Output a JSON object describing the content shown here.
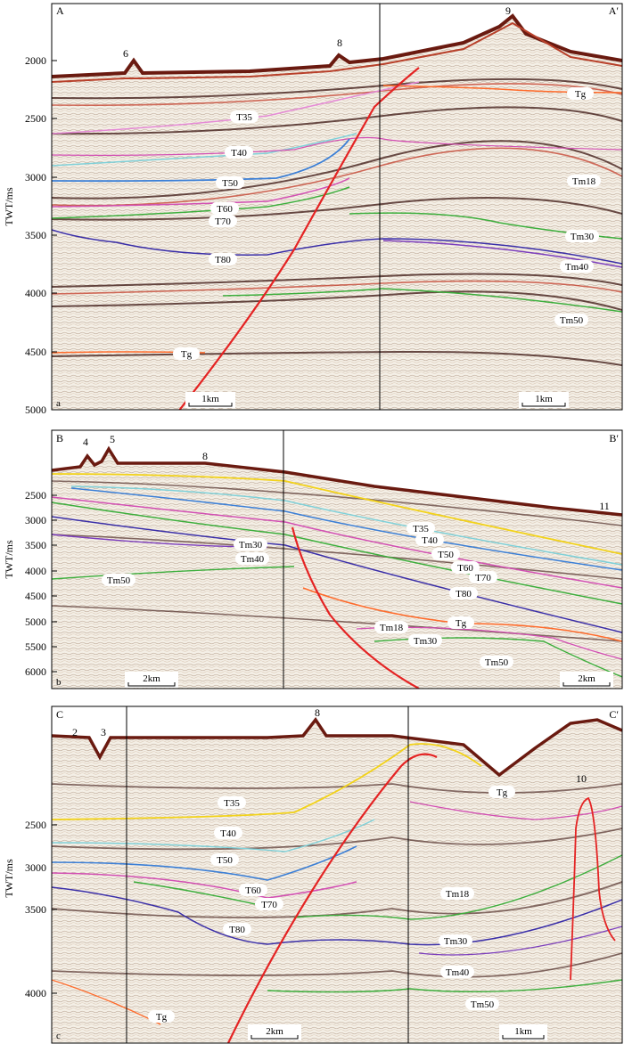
{
  "panels": [
    {
      "id": "a",
      "panel_letter": "a",
      "ylabel": "TWT/ms",
      "corner_left": "A",
      "corner_right": "A′",
      "yticks": [
        "2000",
        "2500",
        "3000",
        "3500",
        "4000",
        "4500",
        "5000"
      ],
      "numbers": [
        "6",
        "8",
        "9"
      ],
      "horizons": [
        {
          "label": "T35",
          "color": "#e58ad6"
        },
        {
          "label": "T40",
          "color": "#7fd0d8"
        },
        {
          "label": "T50",
          "color": "#3b7fd6"
        },
        {
          "label": "T60",
          "color": "#d24fb3"
        },
        {
          "label": "T70",
          "color": "#3cae3c"
        },
        {
          "label": "T80",
          "color": "#3a2ea8"
        },
        {
          "label": "Tg",
          "color": "#ff6a2a"
        },
        {
          "label": "Tm18",
          "color": "#d24fb3"
        },
        {
          "label": "Tm30",
          "color": "#3cae3c"
        },
        {
          "label": "Tm40",
          "color": "#7b3dbd"
        },
        {
          "label": "Tm50",
          "color": "#3cae3c"
        }
      ],
      "scale_bars": [
        "1km",
        "1km"
      ]
    },
    {
      "id": "b",
      "panel_letter": "b",
      "ylabel": "TWT/ms",
      "corner_left": "B",
      "corner_right": "B′",
      "yticks": [
        "2500",
        "3000",
        "3500",
        "4000",
        "4500",
        "5000",
        "5500",
        "6000"
      ],
      "numbers": [
        "4",
        "5",
        "8",
        "11"
      ],
      "horizons": [
        {
          "label": "Tm30",
          "color": "#3cae3c"
        },
        {
          "label": "Tm40",
          "color": "#7b3dbd"
        },
        {
          "label": "Tm50",
          "color": "#3cae3c"
        },
        {
          "label": "T35",
          "color": "#f2d21a"
        },
        {
          "label": "T40",
          "color": "#7fd0d8"
        },
        {
          "label": "T50",
          "color": "#3b7fd6"
        },
        {
          "label": "T60",
          "color": "#d24fb3"
        },
        {
          "label": "T70",
          "color": "#3cae3c"
        },
        {
          "label": "T80",
          "color": "#3a2ea8"
        },
        {
          "label": "Tg",
          "color": "#ff6a2a"
        },
        {
          "label": "Tm18",
          "color": "#d24fb3"
        },
        {
          "label": "Tm30",
          "color": "#3cae3c"
        },
        {
          "label": "Tm50",
          "color": "#3cae3c"
        }
      ],
      "scale_bars": [
        "2km",
        "2km"
      ]
    },
    {
      "id": "c",
      "panel_letter": "c",
      "ylabel": "TWT/ms",
      "corner_left": "C",
      "corner_right": "C′",
      "yticks": [
        "2500",
        "3000",
        "3500",
        "4000"
      ],
      "numbers": [
        "2",
        "3",
        "8",
        "10"
      ],
      "horizons": [
        {
          "label": "T35",
          "color": "#f2d21a"
        },
        {
          "label": "T40",
          "color": "#7fd0d8"
        },
        {
          "label": "T50",
          "color": "#3b7fd6"
        },
        {
          "label": "T60",
          "color": "#d24fb3"
        },
        {
          "label": "T70",
          "color": "#3cae3c"
        },
        {
          "label": "T80",
          "color": "#3a2ea8"
        },
        {
          "label": "Tg",
          "color": "#ff6a2a"
        },
        {
          "label": "Tg",
          "color": "#ff6a2a"
        },
        {
          "label": "Tm18",
          "color": "#d24fb3"
        },
        {
          "label": "Tm30",
          "color": "#3cae3c"
        },
        {
          "label": "Tm40",
          "color": "#7b3dbd"
        },
        {
          "label": "Tm50",
          "color": "#3cae3c"
        }
      ],
      "scale_bars": [
        "2km",
        "1km"
      ]
    }
  ]
}
